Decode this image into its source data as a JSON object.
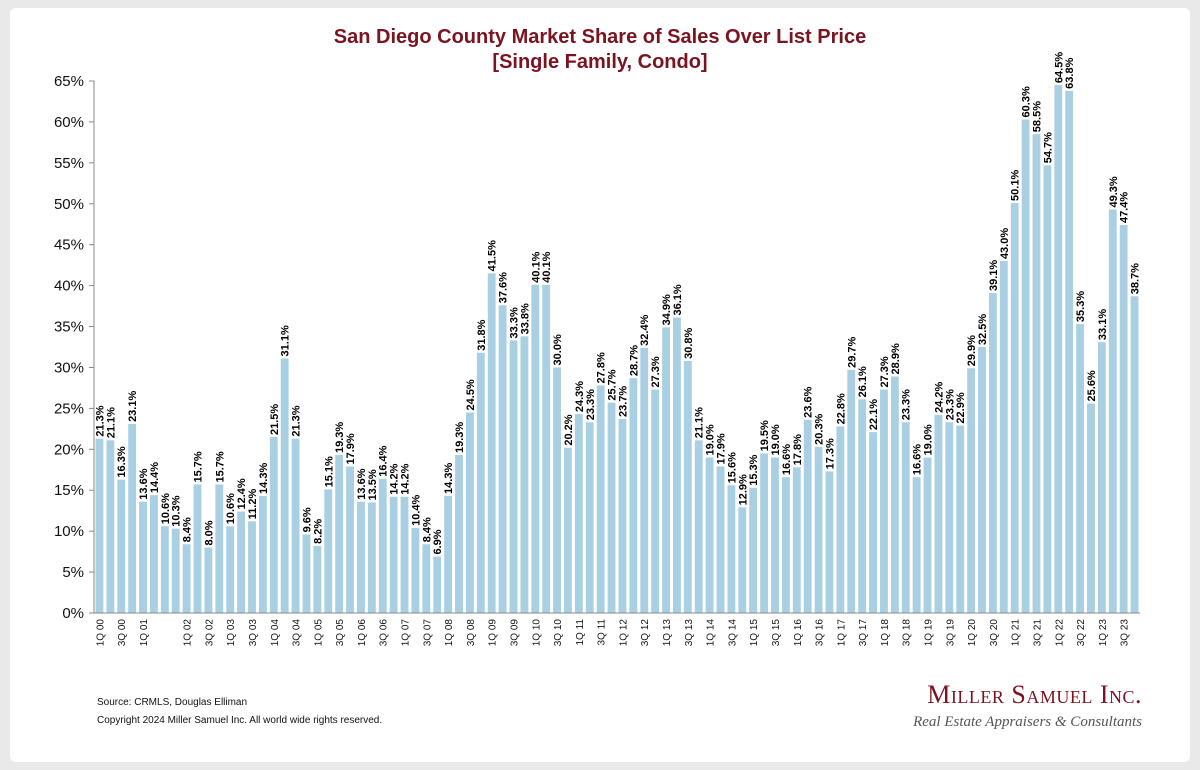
{
  "header": {
    "title": "San Diego County Market Share of Sales Over List Price",
    "subtitle": "[Single Family, Condo]"
  },
  "footer": {
    "source": "Source: CRMLS, Douglas Elliman",
    "copyright": "Copyright 2024 Miller Samuel Inc.  All world wide rights reserved.",
    "brand_name": "Miller Samuel Inc.",
    "brand_tagline": "Real Estate Appraisers & Consultants"
  },
  "chart_data": {
    "type": "bar",
    "title": "San Diego County Market Share of Sales Over List Price",
    "subtitle": "[Single Family, Condo]",
    "xlabel": "",
    "ylabel": "",
    "ylim": [
      0,
      65
    ],
    "y_ticks": [
      "0%",
      "5%",
      "10%",
      "15%",
      "20%",
      "25%",
      "30%",
      "35%",
      "40%",
      "45%",
      "50%",
      "55%",
      "60%",
      "65%"
    ],
    "grid": false,
    "bar_color": "#a9cfe3",
    "value_suffix": "%",
    "categories": [
      "1Q 00",
      "2Q 00",
      "3Q 00",
      "4Q 00",
      "1Q 01",
      "2Q 01",
      "3Q 01",
      "4Q 01",
      "1Q 02",
      "2Q 02",
      "3Q 02",
      "4Q 02",
      "1Q 03",
      "2Q 03",
      "3Q 03",
      "4Q 03",
      "1Q 04",
      "2Q 04",
      "3Q 04",
      "4Q 04",
      "1Q 05",
      "2Q 05",
      "3Q 05",
      "4Q 05",
      "1Q 06",
      "2Q 06",
      "3Q 06",
      "4Q 06",
      "1Q 07",
      "2Q 07",
      "3Q 07",
      "4Q 07",
      "1Q 08",
      "2Q 08",
      "3Q 08",
      "4Q 08",
      "1Q 09",
      "2Q 09",
      "3Q 09",
      "4Q 09",
      "1Q 10",
      "2Q 10",
      "3Q 10",
      "4Q 10",
      "1Q 11",
      "2Q 11",
      "3Q 11",
      "4Q 11",
      "1Q 12",
      "2Q 12",
      "3Q 12",
      "4Q 12",
      "1Q 13",
      "2Q 13",
      "3Q 13",
      "4Q 13",
      "1Q 14",
      "2Q 14",
      "3Q 14",
      "4Q 14",
      "1Q 15",
      "2Q 15",
      "3Q 15",
      "4Q 15",
      "1Q 16",
      "2Q 16",
      "3Q 16",
      "4Q 16",
      "1Q 17",
      "2Q 17",
      "3Q 17",
      "4Q 17",
      "1Q 18",
      "2Q 18",
      "3Q 18",
      "4Q 18",
      "1Q 19",
      "2Q 19",
      "3Q 19",
      "4Q 19",
      "1Q 20",
      "2Q 20",
      "3Q 20",
      "4Q 20",
      "1Q 21",
      "2Q 21",
      "3Q 21",
      "4Q 21",
      "1Q 22",
      "2Q 22",
      "3Q 22",
      "4Q 22",
      "1Q 23",
      "2Q 23",
      "3Q 23",
      "4Q 23"
    ],
    "x_tick_labels": [
      "1Q 00",
      "3Q 00",
      "1Q 01",
      "1Q 02",
      "3Q 02",
      "1Q 03",
      "3Q 03",
      "1Q 04",
      "3Q 04",
      "1Q 05",
      "3Q 05",
      "1Q 06",
      "3Q 06",
      "1Q 07",
      "3Q 07",
      "1Q 08",
      "3Q 08",
      "1Q 09",
      "3Q 09",
      "1Q 10",
      "3Q 10",
      "1Q 11",
      "3Q 11",
      "1Q 12",
      "3Q 12",
      "1Q 13",
      "3Q 13",
      "1Q 14",
      "3Q 14",
      "1Q 15",
      "3Q 15",
      "1Q 16",
      "3Q 16",
      "1Q 17",
      "3Q 17",
      "1Q 18",
      "3Q 18",
      "1Q 19",
      "3Q 19",
      "1Q 20",
      "3Q 20",
      "1Q 21",
      "3Q 21",
      "1Q 22",
      "3Q 22",
      "1Q 23",
      "3Q 23"
    ],
    "values": [
      21.3,
      21.1,
      16.3,
      23.1,
      13.6,
      14.4,
      10.6,
      10.3,
      8.4,
      15.7,
      8.0,
      15.7,
      10.6,
      12.4,
      11.2,
      14.3,
      21.5,
      31.1,
      21.3,
      9.6,
      8.2,
      15.1,
      19.3,
      17.9,
      13.6,
      13.5,
      16.4,
      14.2,
      14.2,
      10.4,
      8.4,
      6.9,
      14.3,
      19.3,
      24.5,
      31.8,
      41.5,
      37.6,
      33.3,
      33.8,
      40.1,
      40.1,
      30.0,
      20.2,
      24.3,
      23.3,
      27.8,
      25.7,
      23.7,
      28.7,
      32.4,
      27.3,
      34.9,
      36.1,
      30.8,
      21.1,
      19.0,
      17.9,
      15.6,
      12.9,
      15.3,
      19.5,
      19.0,
      16.6,
      17.8,
      23.6,
      20.3,
      17.3,
      22.8,
      29.7,
      26.1,
      22.1,
      27.3,
      28.9,
      23.3,
      16.6,
      19.0,
      24.2,
      23.3,
      22.9,
      29.9,
      32.5,
      39.1,
      43.0,
      50.1,
      60.3,
      58.5,
      54.7,
      64.5,
      63.8,
      35.3,
      25.6,
      33.1,
      49.3,
      47.4,
      38.7
    ],
    "value_labels": [
      "21.3%",
      "21.1%",
      "16.3%",
      "23.1%",
      "13.6%",
      "14.4%",
      "10.6%",
      "10.3%",
      "8.4%",
      "15.7%",
      "8.0%",
      "15.7%",
      "10.6%",
      "12.4%",
      "11.2%",
      "14.3%",
      "21.5%",
      "31.1%",
      "21.3%",
      "9.6%",
      "8.2%",
      "15.1%",
      "19.3%",
      "17.9%",
      "13.6%",
      "13.5%",
      "16.4%",
      "14.2%",
      "14.2%",
      "10.4%",
      "8.4%",
      "6.9%",
      "14.3%",
      "19.3%",
      "24.5%",
      "31.8%",
      "41.5%",
      "37.6%",
      "33.3%",
      "33.8%",
      "40.1%",
      "40.1%",
      "30.0%",
      "20.2%",
      "24.3%",
      "23.3%",
      "27.8%",
      "25.7%",
      "23.7%",
      "28.7%",
      "32.4%",
      "27.3%",
      "34.9%",
      "36.1%",
      "30.8%",
      "21.1%",
      "19.0%",
      "17.9%",
      "15.6%",
      "12.9%",
      "15.3%",
      "19.5%",
      "19.0%",
      "16.6%",
      "17.8%",
      "23.6%",
      "20.3%",
      "17.3%",
      "22.8%",
      "29.7%",
      "26.1%",
      "22.1%",
      "27.3%",
      "28.9%",
      "23.3%",
      "16.6%",
      "19.0%",
      "24.2%",
      "23.3%",
      "22.9%",
      "29.9%",
      "32.5%",
      "39.1%",
      "43.0%",
      "50.1%",
      "60.3%",
      "58.5%",
      "54.7%",
      "64.5%",
      "63.8%",
      "35.3%",
      "25.6%",
      "33.1%",
      "49.3%",
      "47.4%",
      "38.7%"
    ]
  }
}
